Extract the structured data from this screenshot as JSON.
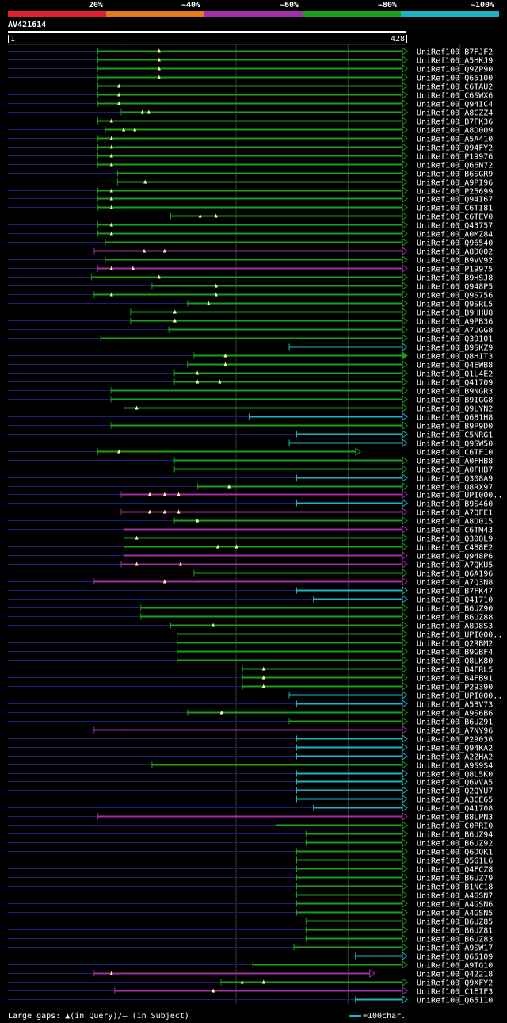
{
  "legend": {
    "labels": [
      "20%",
      "~40%",
      "~60%",
      "~80%",
      "~100%"
    ],
    "colors": [
      "#e0202a",
      "#e87a1e",
      "#a22ea8",
      "#18a018",
      "#1ab5c3"
    ]
  },
  "query": {
    "name": "AV421614",
    "start_label": "1",
    "end_label": "428"
  },
  "footer": {
    "gaps_text": "Large gaps: ▲(in Query)/– (in Subject)",
    "scale_text": "=100char."
  },
  "chart_data": {
    "type": "alignment",
    "title": "AV421614",
    "query_length": 428,
    "ref_line_positions": [
      125,
      245,
      365,
      485
    ],
    "colors": {
      "g": "#18a018",
      "p": "#a22ea8",
      "c": "#1ab5c3"
    },
    "hits": [
      {
        "id": "UniRef100_B7FJF2",
        "start": 97,
        "end": 428,
        "color": "g",
        "arrow": "open",
        "ins": [
          163,
          163
        ]
      },
      {
        "id": "UniRef100_A5HKJ9",
        "start": 97,
        "end": 428,
        "color": "g",
        "arrow": "open",
        "ins": [
          163
        ]
      },
      {
        "id": "UniRef100_Q9ZP90",
        "start": 97,
        "end": 428,
        "color": "g",
        "arrow": "open",
        "ins": [
          163
        ]
      },
      {
        "id": "UniRef100_Q65100",
        "start": 97,
        "end": 428,
        "color": "g",
        "arrow": "open",
        "ins": [
          163
        ]
      },
      {
        "id": "UniRef100_C6TAU2",
        "start": 97,
        "end": 428,
        "color": "g",
        "arrow": "open",
        "ins": [
          120
        ]
      },
      {
        "id": "UniRef100_C6SWX6",
        "start": 97,
        "end": 428,
        "color": "g",
        "arrow": "open",
        "ins": [
          120
        ]
      },
      {
        "id": "UniRef100_Q94IC4",
        "start": 97,
        "end": 428,
        "color": "g",
        "arrow": "open",
        "ins": [
          120
        ]
      },
      {
        "id": "UniRef100_A8CZZ4",
        "start": 122,
        "end": 428,
        "color": "g",
        "arrow": "open",
        "ins": [
          145,
          152
        ]
      },
      {
        "id": "UniRef100_B7FK36",
        "start": 97,
        "end": 428,
        "color": "g",
        "arrow": "open",
        "ins": [
          112
        ]
      },
      {
        "id": "UniRef100_A8D009",
        "start": 105,
        "end": 428,
        "color": "g",
        "arrow": "open",
        "ins": [
          125,
          137
        ]
      },
      {
        "id": "UniRef100_A5A410",
        "start": 97,
        "end": 428,
        "color": "g",
        "arrow": "open",
        "ins": [
          112
        ]
      },
      {
        "id": "UniRef100_Q94FY2",
        "start": 97,
        "end": 428,
        "color": "g",
        "arrow": "open",
        "ins": [
          112
        ]
      },
      {
        "id": "UniRef100_P19976",
        "start": 97,
        "end": 428,
        "color": "g",
        "arrow": "open",
        "ins": [
          112
        ]
      },
      {
        "id": "UniRef100_Q66N72",
        "start": 97,
        "end": 428,
        "color": "g",
        "arrow": "open",
        "ins": [
          112
        ]
      },
      {
        "id": "UniRef100_B6SGR9",
        "start": 118,
        "end": 428,
        "color": "g",
        "arrow": "open",
        "ins": []
      },
      {
        "id": "UniRef100_A9PI96",
        "start": 118,
        "end": 428,
        "color": "g",
        "arrow": "open",
        "ins": [
          148
        ]
      },
      {
        "id": "UniRef100_P25699",
        "start": 97,
        "end": 428,
        "color": "g",
        "arrow": "open",
        "ins": [
          112
        ]
      },
      {
        "id": "UniRef100_Q94I67",
        "start": 97,
        "end": 428,
        "color": "g",
        "arrow": "open",
        "ins": [
          112
        ]
      },
      {
        "id": "UniRef100_C6TI81",
        "start": 97,
        "end": 428,
        "color": "g",
        "arrow": "open",
        "ins": [
          112
        ]
      },
      {
        "id": "UniRef100_C6TEV0",
        "start": 175,
        "end": 428,
        "color": "g",
        "arrow": "open",
        "ins": [
          207,
          224
        ]
      },
      {
        "id": "UniRef100_Q43757",
        "start": 97,
        "end": 428,
        "color": "g",
        "arrow": "open",
        "ins": [
          112
        ]
      },
      {
        "id": "UniRef100_A0MZ84",
        "start": 97,
        "end": 428,
        "color": "g",
        "arrow": "open",
        "ins": [
          112
        ]
      },
      {
        "id": "UniRef100_Q96540",
        "start": 105,
        "end": 428,
        "color": "g",
        "arrow": "open",
        "ins": []
      },
      {
        "id": "UniRef100_A8D002",
        "start": 93,
        "end": 428,
        "color": "p",
        "arrow": "open",
        "ins": [
          147,
          169
        ]
      },
      {
        "id": "UniRef100_B9VV92",
        "start": 105,
        "end": 428,
        "color": "g",
        "arrow": "open",
        "ins": []
      },
      {
        "id": "UniRef100_P19975",
        "start": 97,
        "end": 428,
        "color": "p",
        "arrow": "open",
        "ins": [
          112,
          135
        ]
      },
      {
        "id": "UniRef100_B9HSJ8",
        "start": 90,
        "end": 428,
        "color": "g",
        "arrow": "open",
        "ins": [
          163
        ]
      },
      {
        "id": "UniRef100_Q948P5",
        "start": 155,
        "end": 428,
        "color": "g",
        "arrow": "open",
        "ins": [
          224
        ]
      },
      {
        "id": "UniRef100_Q9S756",
        "start": 93,
        "end": 428,
        "color": "g",
        "arrow": "open",
        "ins": [
          112,
          224
        ]
      },
      {
        "id": "UniRef100_Q9SRL5",
        "start": 193,
        "end": 428,
        "color": "g",
        "arrow": "open",
        "ins": [
          216
        ]
      },
      {
        "id": "UniRef100_B9HHU8",
        "start": 132,
        "end": 428,
        "color": "g",
        "arrow": "open",
        "ins": [
          180
        ]
      },
      {
        "id": "UniRef100_A9PB36",
        "start": 132,
        "end": 428,
        "color": "g",
        "arrow": "open",
        "ins": [
          180
        ]
      },
      {
        "id": "UniRef100_A7UGG8",
        "start": 173,
        "end": 428,
        "color": "g",
        "arrow": "open",
        "ins": []
      },
      {
        "id": "UniRef100_Q39101",
        "start": 100,
        "end": 428,
        "color": "g",
        "arrow": "open",
        "ins": []
      },
      {
        "id": "UniRef100_B9SKZ9",
        "start": 302,
        "end": 428,
        "color": "c",
        "arrow": "open",
        "ins": []
      },
      {
        "id": "UniRef100_Q8H1T3",
        "start": 200,
        "end": 428,
        "color": "g",
        "arrow": "filled",
        "ins": [
          234
        ]
      },
      {
        "id": "UniRef100_Q4EWB8",
        "start": 193,
        "end": 428,
        "color": "g",
        "arrow": "open",
        "ins": [
          234
        ]
      },
      {
        "id": "UniRef100_Q1L4E2",
        "start": 179,
        "end": 428,
        "color": "g",
        "arrow": "open",
        "ins": [
          204
        ]
      },
      {
        "id": "UniRef100_Q41709",
        "start": 179,
        "end": 428,
        "color": "g",
        "arrow": "open",
        "ins": [
          204,
          228
        ]
      },
      {
        "id": "UniRef100_B9NGR3",
        "start": 111,
        "end": 428,
        "color": "g",
        "arrow": "open",
        "ins": []
      },
      {
        "id": "UniRef100_B9IGG8",
        "start": 111,
        "end": 428,
        "color": "g",
        "arrow": "open",
        "ins": []
      },
      {
        "id": "UniRef100_Q9LYN2",
        "start": 125,
        "end": 428,
        "color": "g",
        "arrow": "open",
        "ins": [
          139
        ]
      },
      {
        "id": "UniRef100_Q681H8",
        "start": 259,
        "end": 428,
        "color": "c",
        "arrow": "open",
        "ins": []
      },
      {
        "id": "UniRef100_B9P9D0",
        "start": 111,
        "end": 428,
        "color": "g",
        "arrow": "open",
        "ins": []
      },
      {
        "id": "UniRef100_C5NRG1",
        "start": 310,
        "end": 428,
        "color": "c",
        "arrow": "open",
        "ins": []
      },
      {
        "id": "UniRef100_Q9SW50",
        "start": 302,
        "end": 428,
        "color": "c",
        "arrow": "open",
        "ins": []
      },
      {
        "id": "UniRef100_C6TF10",
        "start": 97,
        "end": 378,
        "color": "g",
        "arrow": "open",
        "ins": [
          120
        ]
      },
      {
        "id": "UniRef100_A0FHB8",
        "start": 179,
        "end": 428,
        "color": "g",
        "arrow": "open",
        "ins": []
      },
      {
        "id": "UniRef100_A0FHB7",
        "start": 179,
        "end": 428,
        "color": "g",
        "arrow": "open",
        "ins": []
      },
      {
        "id": "UniRef100_Q308A9",
        "start": 310,
        "end": 428,
        "color": "c",
        "arrow": "open",
        "ins": []
      },
      {
        "id": "UniRef100_Q8RX97",
        "start": 204,
        "end": 428,
        "color": "g",
        "arrow": "open",
        "ins": [
          238
        ]
      },
      {
        "id": "UniRef100_UPI000..",
        "start": 122,
        "end": 428,
        "color": "p",
        "arrow": "open",
        "ins": [
          153,
          169,
          184
        ]
      },
      {
        "id": "UniRef100_B9S460",
        "start": 310,
        "end": 428,
        "color": "c",
        "arrow": "open",
        "ins": []
      },
      {
        "id": "UniRef100_A7QFE1",
        "start": 122,
        "end": 428,
        "color": "p",
        "arrow": "open",
        "ins": [
          153,
          169,
          184
        ]
      },
      {
        "id": "UniRef100_A8D015",
        "start": 179,
        "end": 428,
        "color": "g",
        "arrow": "open",
        "ins": [
          204
        ]
      },
      {
        "id": "UniRef100_C6TM43",
        "start": 125,
        "end": 428,
        "color": "p",
        "arrow": "open",
        "ins": []
      },
      {
        "id": "UniRef100_Q308L9",
        "start": 125,
        "end": 428,
        "color": "g",
        "arrow": "open",
        "ins": [
          139
        ]
      },
      {
        "id": "UniRef100_C4B8E2",
        "start": 125,
        "end": 428,
        "color": "g",
        "arrow": "open",
        "ins": [
          226,
          246
        ]
      },
      {
        "id": "UniRef100_Q948P6",
        "start": 125,
        "end": 428,
        "color": "p",
        "arrow": "open",
        "ins": []
      },
      {
        "id": "UniRef100_A7QKU5",
        "start": 122,
        "end": 428,
        "color": "p",
        "arrow": "open",
        "ins": [
          139,
          186
        ]
      },
      {
        "id": "UniRef100_Q6A196",
        "start": 200,
        "end": 428,
        "color": "g",
        "arrow": "open",
        "ins": []
      },
      {
        "id": "UniRef100_A7Q3N8",
        "start": 93,
        "end": 428,
        "color": "p",
        "arrow": "open",
        "ins": [
          169
        ]
      },
      {
        "id": "UniRef100_B7FK47",
        "start": 310,
        "end": 428,
        "color": "c",
        "arrow": "open",
        "ins": []
      },
      {
        "id": "UniRef100_Q41710",
        "start": 328,
        "end": 428,
        "color": "c",
        "arrow": "open",
        "ins": []
      },
      {
        "id": "UniRef100_B6UZ90",
        "start": 143,
        "end": 428,
        "color": "g",
        "arrow": "open",
        "ins": []
      },
      {
        "id": "UniRef100_B6UZ88",
        "start": 143,
        "end": 428,
        "color": "g",
        "arrow": "open",
        "ins": []
      },
      {
        "id": "UniRef100_A8D8S3",
        "start": 175,
        "end": 428,
        "color": "g",
        "arrow": "open",
        "ins": [
          221
        ]
      },
      {
        "id": "UniRef100_UPI000..",
        "start": 182,
        "end": 428,
        "color": "g",
        "arrow": "open",
        "ins": []
      },
      {
        "id": "UniRef100_Q2RBM2",
        "start": 182,
        "end": 428,
        "color": "g",
        "arrow": "open",
        "ins": []
      },
      {
        "id": "UniRef100_B9GBF4",
        "start": 182,
        "end": 428,
        "color": "g",
        "arrow": "open",
        "ins": []
      },
      {
        "id": "UniRef100_Q8LK80",
        "start": 182,
        "end": 428,
        "color": "g",
        "arrow": "open",
        "ins": []
      },
      {
        "id": "UniRef100_B4FRL5",
        "start": 252,
        "end": 428,
        "color": "g",
        "arrow": "open",
        "ins": [
          275
        ]
      },
      {
        "id": "UniRef100_B4FB91",
        "start": 252,
        "end": 428,
        "color": "g",
        "arrow": "open",
        "ins": [
          275
        ]
      },
      {
        "id": "UniRef100_P29390",
        "start": 252,
        "end": 428,
        "color": "g",
        "arrow": "open",
        "ins": [
          275
        ]
      },
      {
        "id": "UniRef100_UPI000..",
        "start": 302,
        "end": 428,
        "color": "c",
        "arrow": "open",
        "ins": []
      },
      {
        "id": "UniRef100_A5BV73",
        "start": 310,
        "end": 428,
        "color": "c",
        "arrow": "open",
        "ins": []
      },
      {
        "id": "UniRef100_A9S6B6",
        "start": 193,
        "end": 428,
        "color": "g",
        "arrow": "open",
        "ins": [
          230
        ]
      },
      {
        "id": "UniRef100_B6UZ91",
        "start": 302,
        "end": 428,
        "color": "g",
        "arrow": "open",
        "ins": []
      },
      {
        "id": "UniRef100_A7NY96",
        "start": 93,
        "end": 428,
        "color": "p",
        "arrow": "open",
        "ins": []
      },
      {
        "id": "UniRef100_P29036",
        "start": 310,
        "end": 428,
        "color": "c",
        "arrow": "open",
        "ins": []
      },
      {
        "id": "UniRef100_Q94KA2",
        "start": 310,
        "end": 428,
        "color": "c",
        "arrow": "open",
        "ins": []
      },
      {
        "id": "UniRef100_A2ZHA2",
        "start": 310,
        "end": 428,
        "color": "c",
        "arrow": "open",
        "ins": []
      },
      {
        "id": "UniRef100_A9S9S4",
        "start": 155,
        "end": 428,
        "color": "g",
        "arrow": "open",
        "ins": []
      },
      {
        "id": "UniRef100_Q8L5K0",
        "start": 310,
        "end": 428,
        "color": "c",
        "arrow": "open",
        "ins": []
      },
      {
        "id": "UniRef100_Q6VVA5",
        "start": 310,
        "end": 428,
        "color": "c",
        "arrow": "open",
        "ins": []
      },
      {
        "id": "UniRef100_Q2QYU7",
        "start": 310,
        "end": 428,
        "color": "c",
        "arrow": "open",
        "ins": []
      },
      {
        "id": "UniRef100_A3CE65",
        "start": 310,
        "end": 428,
        "color": "c",
        "arrow": "open",
        "ins": []
      },
      {
        "id": "UniRef100_Q41708",
        "start": 328,
        "end": 428,
        "color": "c",
        "arrow": "open",
        "ins": []
      },
      {
        "id": "UniRef100_B8LPN3",
        "start": 97,
        "end": 428,
        "color": "p",
        "arrow": "open",
        "ins": []
      },
      {
        "id": "UniRef100_C0PRI0",
        "start": 288,
        "end": 428,
        "color": "g",
        "arrow": "open",
        "ins": []
      },
      {
        "id": "UniRef100_B6UZ94",
        "start": 320,
        "end": 428,
        "color": "g",
        "arrow": "open",
        "ins": []
      },
      {
        "id": "UniRef100_B6UZ92",
        "start": 320,
        "end": 428,
        "color": "g",
        "arrow": "open",
        "ins": []
      },
      {
        "id": "UniRef100_Q6DQK1",
        "start": 310,
        "end": 428,
        "color": "g",
        "arrow": "open",
        "ins": []
      },
      {
        "id": "UniRef100_Q5G1L6",
        "start": 310,
        "end": 428,
        "color": "g",
        "arrow": "open",
        "ins": []
      },
      {
        "id": "UniRef100_Q4FCZ8",
        "start": 310,
        "end": 428,
        "color": "g",
        "arrow": "open",
        "ins": []
      },
      {
        "id": "UniRef100_B6UZ79",
        "start": 310,
        "end": 428,
        "color": "g",
        "arrow": "open",
        "ins": []
      },
      {
        "id": "UniRef100_B1NC18",
        "start": 310,
        "end": 428,
        "color": "g",
        "arrow": "open",
        "ins": []
      },
      {
        "id": "UniRef100_A4GSN7",
        "start": 310,
        "end": 428,
        "color": "g",
        "arrow": "open",
        "ins": []
      },
      {
        "id": "UniRef100_A4GSN6",
        "start": 310,
        "end": 428,
        "color": "g",
        "arrow": "open",
        "ins": []
      },
      {
        "id": "UniRef100_A4GSN5",
        "start": 310,
        "end": 428,
        "color": "g",
        "arrow": "open",
        "ins": []
      },
      {
        "id": "UniRef100_B6UZ85",
        "start": 320,
        "end": 428,
        "color": "g",
        "arrow": "open",
        "ins": []
      },
      {
        "id": "UniRef100_B6UZ81",
        "start": 320,
        "end": 428,
        "color": "g",
        "arrow": "open",
        "ins": []
      },
      {
        "id": "UniRef100_B6UZ83",
        "start": 320,
        "end": 428,
        "color": "g",
        "arrow": "open",
        "ins": []
      },
      {
        "id": "UniRef100_A9SW17",
        "start": 307,
        "end": 428,
        "color": "g",
        "arrow": "open",
        "ins": []
      },
      {
        "id": "UniRef100_Q65109",
        "start": 373,
        "end": 428,
        "color": "c",
        "arrow": "open",
        "ins": []
      },
      {
        "id": "UniRef100_A9TG10",
        "start": 263,
        "end": 428,
        "color": "g",
        "arrow": "open",
        "ins": []
      },
      {
        "id": "UniRef100_Q42218",
        "start": 93,
        "end": 393,
        "color": "p",
        "arrow": "open",
        "ins": [
          112
        ]
      },
      {
        "id": "UniRef100_Q9XFY2",
        "start": 229,
        "end": 428,
        "color": "g",
        "arrow": "open",
        "ins": [
          252,
          275
        ]
      },
      {
        "id": "UniRef100_C1EIF3",
        "start": 115,
        "end": 428,
        "color": "p",
        "arrow": "open",
        "ins": [
          221
        ]
      },
      {
        "id": "UniRef100_Q65110",
        "start": 373,
        "end": 428,
        "color": "c",
        "arrow": "open",
        "ins": []
      }
    ]
  }
}
